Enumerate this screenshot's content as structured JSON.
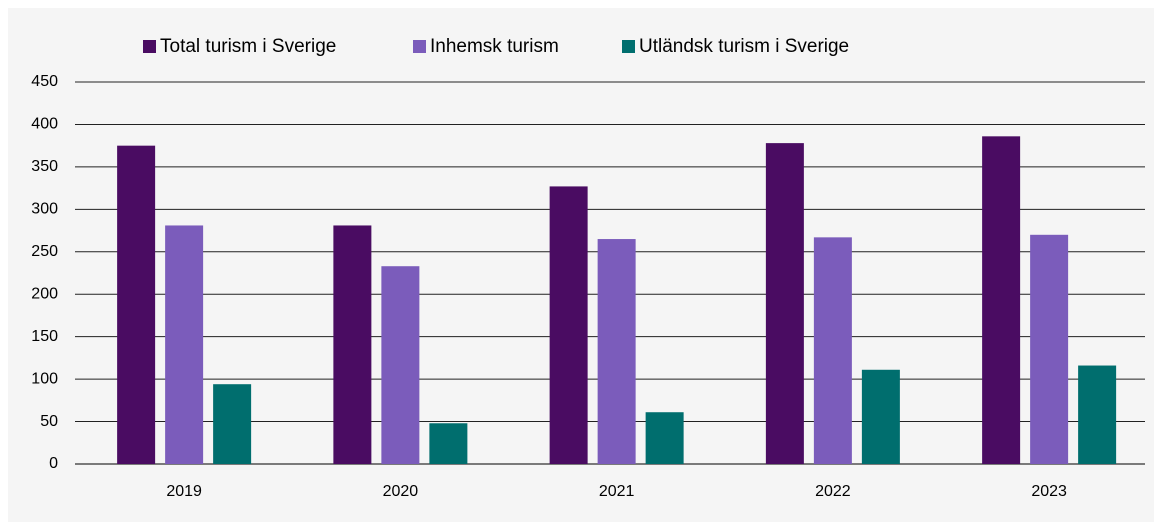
{
  "chart_data": {
    "type": "bar",
    "categories": [
      "2019",
      "2020",
      "2021",
      "2022",
      "2023"
    ],
    "series": [
      {
        "name": "Total turism i Sverige",
        "color": "#4a0c62",
        "values": [
          375,
          281,
          327,
          378,
          386
        ]
      },
      {
        "name": "Inhemsk turism",
        "color": "#7b5cbb",
        "values": [
          281,
          233,
          265,
          267,
          270
        ]
      },
      {
        "name": "Utländsk turism i Sverige",
        "color": "#006e6e",
        "values": [
          94,
          48,
          61,
          111,
          116
        ]
      }
    ],
    "ylim": [
      0,
      450
    ],
    "yticks": [
      0,
      50,
      100,
      150,
      200,
      250,
      300,
      350,
      400,
      450
    ],
    "grid": true,
    "legend": "top"
  }
}
